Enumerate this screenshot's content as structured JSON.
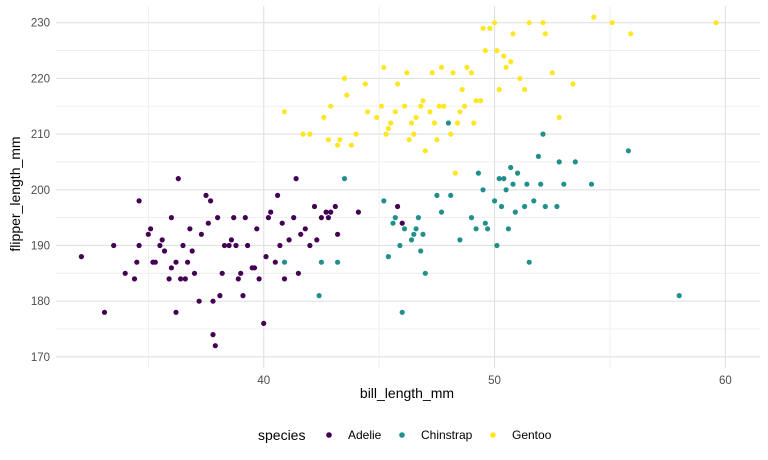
{
  "chart_data": {
    "type": "scatter",
    "title": "",
    "xlabel": "bill_length_mm",
    "ylabel": "flipper_length_mm",
    "xlim": [
      31,
      61.5
    ],
    "ylim": [
      168,
      233
    ],
    "x_ticks": [
      40,
      50,
      60
    ],
    "x_tick_labels": [
      "40",
      "50",
      "60"
    ],
    "y_ticks": [
      170,
      180,
      190,
      200,
      210,
      220,
      230
    ],
    "y_tick_labels": [
      "170",
      "180",
      "190",
      "200",
      "210",
      "220",
      "230"
    ],
    "grid": true,
    "legend": {
      "title": "species",
      "placement": "bottom"
    },
    "series": [
      {
        "name": "Adelie",
        "color": "#440154",
        "points": [
          [
            32.1,
            188
          ],
          [
            33.1,
            178
          ],
          [
            33.5,
            190
          ],
          [
            34.0,
            185
          ],
          [
            34.4,
            184
          ],
          [
            34.5,
            187
          ],
          [
            34.6,
            190
          ],
          [
            34.6,
            198
          ],
          [
            35.0,
            192
          ],
          [
            35.1,
            193
          ],
          [
            35.2,
            187
          ],
          [
            35.3,
            187
          ],
          [
            35.5,
            190
          ],
          [
            35.6,
            191
          ],
          [
            35.7,
            189
          ],
          [
            35.9,
            184
          ],
          [
            36.0,
            195
          ],
          [
            36.0,
            186
          ],
          [
            36.2,
            187
          ],
          [
            36.2,
            178
          ],
          [
            36.3,
            202
          ],
          [
            36.4,
            184
          ],
          [
            36.5,
            190
          ],
          [
            36.6,
            184
          ],
          [
            36.7,
            187
          ],
          [
            36.8,
            193
          ],
          [
            36.9,
            189
          ],
          [
            37.0,
            185
          ],
          [
            37.2,
            180
          ],
          [
            37.3,
            192
          ],
          [
            37.5,
            199
          ],
          [
            37.6,
            194
          ],
          [
            37.7,
            198
          ],
          [
            37.8,
            174
          ],
          [
            37.8,
            180
          ],
          [
            37.9,
            172
          ],
          [
            38.0,
            195
          ],
          [
            38.1,
            181
          ],
          [
            38.2,
            185
          ],
          [
            38.3,
            190
          ],
          [
            38.5,
            190
          ],
          [
            38.6,
            191
          ],
          [
            38.7,
            195
          ],
          [
            38.8,
            190
          ],
          [
            38.9,
            184
          ],
          [
            39.0,
            185
          ],
          [
            39.1,
            181
          ],
          [
            39.2,
            195
          ],
          [
            39.3,
            190
          ],
          [
            39.5,
            186
          ],
          [
            39.6,
            186
          ],
          [
            39.7,
            193
          ],
          [
            39.8,
            184
          ],
          [
            40.0,
            176
          ],
          [
            40.1,
            188
          ],
          [
            40.2,
            195
          ],
          [
            40.3,
            196
          ],
          [
            40.5,
            187
          ],
          [
            40.6,
            199
          ],
          [
            40.7,
            190
          ],
          [
            40.8,
            194
          ],
          [
            40.9,
            184
          ],
          [
            41.1,
            191
          ],
          [
            41.3,
            195
          ],
          [
            41.4,
            202
          ],
          [
            41.5,
            185
          ],
          [
            41.6,
            192
          ],
          [
            41.8,
            193
          ],
          [
            42.0,
            190
          ],
          [
            42.2,
            197
          ],
          [
            42.3,
            191
          ],
          [
            42.5,
            195
          ],
          [
            42.7,
            196
          ],
          [
            42.8,
            195
          ],
          [
            42.9,
            196
          ],
          [
            43.1,
            197
          ],
          [
            43.2,
            192
          ],
          [
            44.1,
            196
          ],
          [
            45.8,
            197
          ],
          [
            46.0,
            194
          ]
        ]
      },
      {
        "name": "Chinstrap",
        "color": "#21908C",
        "points": [
          [
            40.9,
            187
          ],
          [
            42.4,
            181
          ],
          [
            42.5,
            187
          ],
          [
            43.2,
            187
          ],
          [
            43.5,
            202
          ],
          [
            45.2,
            198
          ],
          [
            45.4,
            188
          ],
          [
            45.6,
            194
          ],
          [
            45.7,
            195
          ],
          [
            45.9,
            190
          ],
          [
            46.0,
            178
          ],
          [
            46.1,
            193
          ],
          [
            46.4,
            191
          ],
          [
            46.5,
            192
          ],
          [
            46.6,
            193
          ],
          [
            46.7,
            195
          ],
          [
            46.8,
            189
          ],
          [
            46.9,
            192
          ],
          [
            47.0,
            185
          ],
          [
            47.5,
            199
          ],
          [
            48.1,
            199
          ],
          [
            48.5,
            191
          ],
          [
            49.0,
            195
          ],
          [
            49.2,
            193
          ],
          [
            49.5,
            200
          ],
          [
            49.6,
            194
          ],
          [
            49.7,
            193
          ],
          [
            50.0,
            198
          ],
          [
            50.1,
            190
          ],
          [
            50.2,
            202
          ],
          [
            50.3,
            197
          ],
          [
            50.5,
            200
          ],
          [
            50.6,
            193
          ],
          [
            50.7,
            204
          ],
          [
            50.8,
            201
          ],
          [
            50.9,
            196
          ],
          [
            51.0,
            203
          ],
          [
            51.3,
            197
          ],
          [
            51.4,
            201
          ],
          [
            51.5,
            187
          ],
          [
            51.7,
            198
          ],
          [
            52.0,
            201
          ],
          [
            52.2,
            197
          ],
          [
            52.7,
            197
          ],
          [
            52.8,
            205
          ],
          [
            53.5,
            205
          ],
          [
            54.2,
            201
          ],
          [
            55.8,
            207
          ],
          [
            58.0,
            181
          ],
          [
            49.3,
            203
          ],
          [
            50.4,
            202
          ],
          [
            47.7,
            196
          ],
          [
            48.0,
            212
          ],
          [
            51.9,
            206
          ],
          [
            52.1,
            210
          ],
          [
            53.0,
            201
          ]
        ]
      },
      {
        "name": "Gentoo",
        "color": "#FDE725",
        "points": [
          [
            40.9,
            214
          ],
          [
            41.7,
            210
          ],
          [
            42.0,
            210
          ],
          [
            42.6,
            213
          ],
          [
            42.8,
            209
          ],
          [
            42.9,
            215
          ],
          [
            43.2,
            208
          ],
          [
            43.3,
            209
          ],
          [
            43.5,
            220
          ],
          [
            43.6,
            217
          ],
          [
            43.8,
            208
          ],
          [
            44.0,
            210
          ],
          [
            44.4,
            219
          ],
          [
            44.5,
            214
          ],
          [
            44.9,
            213
          ],
          [
            45.1,
            215
          ],
          [
            45.2,
            222
          ],
          [
            45.3,
            210
          ],
          [
            45.4,
            211
          ],
          [
            45.5,
            212
          ],
          [
            45.7,
            214
          ],
          [
            45.8,
            219
          ],
          [
            46.1,
            215
          ],
          [
            46.2,
            221
          ],
          [
            46.3,
            209
          ],
          [
            46.4,
            212
          ],
          [
            46.5,
            210
          ],
          [
            46.6,
            213
          ],
          [
            46.8,
            215
          ],
          [
            46.9,
            216
          ],
          [
            47.2,
            214
          ],
          [
            47.3,
            221
          ],
          [
            47.4,
            212
          ],
          [
            47.5,
            209
          ],
          [
            47.6,
            215
          ],
          [
            47.7,
            222
          ],
          [
            47.8,
            215
          ],
          [
            48.1,
            210
          ],
          [
            48.2,
            221
          ],
          [
            48.4,
            212
          ],
          [
            48.5,
            214
          ],
          [
            48.6,
            218
          ],
          [
            48.7,
            215
          ],
          [
            48.8,
            222
          ],
          [
            49.0,
            221
          ],
          [
            49.1,
            212
          ],
          [
            49.2,
            216
          ],
          [
            49.4,
            216
          ],
          [
            49.5,
            229
          ],
          [
            49.6,
            225
          ],
          [
            49.8,
            229
          ],
          [
            50.0,
            230
          ],
          [
            50.1,
            225
          ],
          [
            50.2,
            218
          ],
          [
            50.4,
            224
          ],
          [
            50.5,
            222
          ],
          [
            50.7,
            223
          ],
          [
            50.8,
            228
          ],
          [
            51.1,
            220
          ],
          [
            51.3,
            218
          ],
          [
            51.5,
            230
          ],
          [
            52.1,
            230
          ],
          [
            52.2,
            228
          ],
          [
            52.5,
            221
          ],
          [
            52.8,
            213
          ],
          [
            53.4,
            219
          ],
          [
            54.3,
            231
          ],
          [
            55.1,
            230
          ],
          [
            55.9,
            228
          ],
          [
            59.6,
            230
          ],
          [
            48.3,
            203
          ],
          [
            47.0,
            207
          ]
        ]
      }
    ]
  }
}
